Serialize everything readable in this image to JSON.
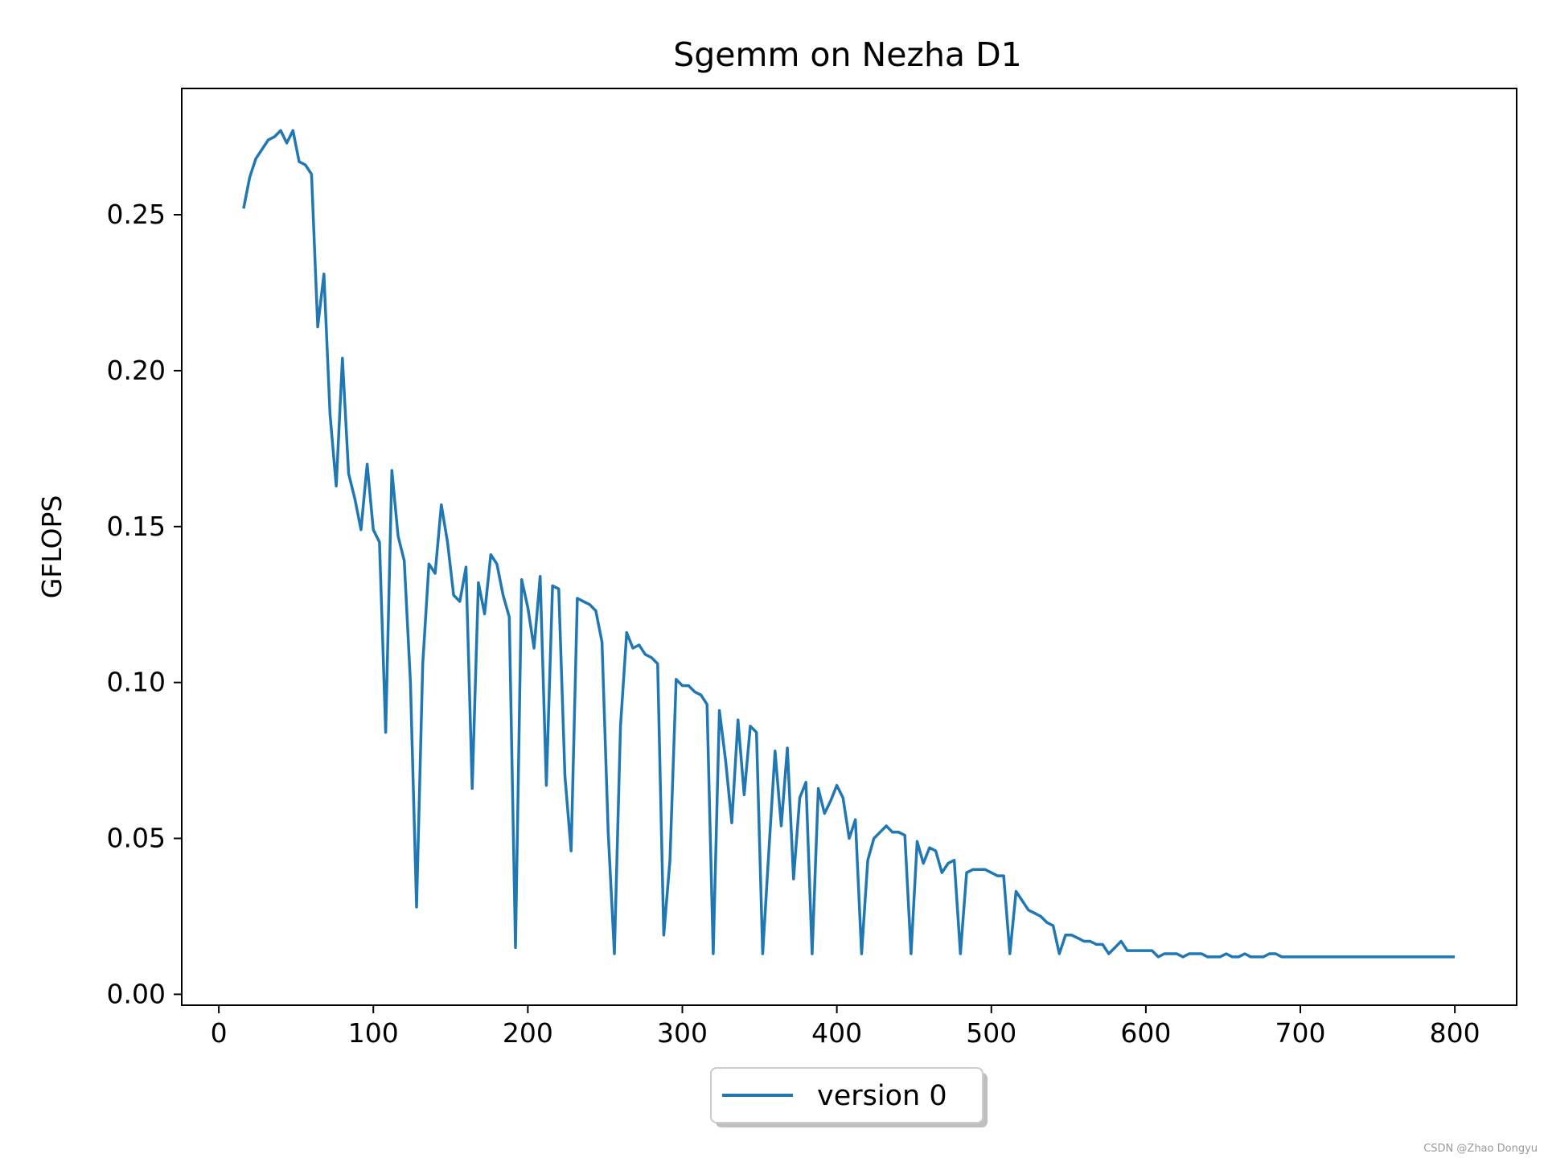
{
  "chart_data": {
    "type": "line",
    "title": "Sgemm on Nezha D1",
    "xlabel": "",
    "ylabel": "GFLOPS",
    "xlim": [
      -24,
      840
    ],
    "ylim": [
      -0.0035,
      0.2905
    ],
    "xticks": [
      0,
      100,
      200,
      300,
      400,
      500,
      600,
      700,
      800
    ],
    "yticks": [
      0.0,
      0.05,
      0.1,
      0.15,
      0.2,
      0.25
    ],
    "xtick_labels": [
      "0",
      "100",
      "200",
      "300",
      "400",
      "500",
      "600",
      "700",
      "800"
    ],
    "ytick_labels": [
      "0.00",
      "0.05",
      "0.10",
      "0.15",
      "0.20",
      "0.25"
    ],
    "legend": {
      "position": "below-center",
      "entries": [
        "version 0"
      ]
    },
    "series": [
      {
        "name": "version 0",
        "color": "#1f77b4",
        "points": [
          [
            16,
            0.252
          ],
          [
            20,
            0.262
          ],
          [
            24,
            0.268
          ],
          [
            28,
            0.271
          ],
          [
            32,
            0.274
          ],
          [
            36,
            0.275
          ],
          [
            40,
            0.277
          ],
          [
            44,
            0.273
          ],
          [
            48,
            0.277
          ],
          [
            52,
            0.267
          ],
          [
            56,
            0.266
          ],
          [
            60,
            0.263
          ],
          [
            64,
            0.214
          ],
          [
            68,
            0.231
          ],
          [
            72,
            0.186
          ],
          [
            76,
            0.163
          ],
          [
            80,
            0.204
          ],
          [
            84,
            0.167
          ],
          [
            88,
            0.159
          ],
          [
            92,
            0.149
          ],
          [
            96,
            0.17
          ],
          [
            100,
            0.149
          ],
          [
            104,
            0.145
          ],
          [
            108,
            0.084
          ],
          [
            112,
            0.168
          ],
          [
            116,
            0.147
          ],
          [
            120,
            0.139
          ],
          [
            124,
            0.1
          ],
          [
            128,
            0.028
          ],
          [
            132,
            0.106
          ],
          [
            136,
            0.138
          ],
          [
            140,
            0.135
          ],
          [
            144,
            0.157
          ],
          [
            148,
            0.145
          ],
          [
            152,
            0.128
          ],
          [
            156,
            0.126
          ],
          [
            160,
            0.137
          ],
          [
            164,
            0.066
          ],
          [
            168,
            0.132
          ],
          [
            172,
            0.122
          ],
          [
            176,
            0.141
          ],
          [
            180,
            0.138
          ],
          [
            184,
            0.128
          ],
          [
            188,
            0.121
          ],
          [
            192,
            0.015
          ],
          [
            196,
            0.133
          ],
          [
            200,
            0.124
          ],
          [
            204,
            0.111
          ],
          [
            208,
            0.134
          ],
          [
            212,
            0.067
          ],
          [
            216,
            0.131
          ],
          [
            220,
            0.13
          ],
          [
            224,
            0.07
          ],
          [
            228,
            0.046
          ],
          [
            232,
            0.127
          ],
          [
            236,
            0.126
          ],
          [
            240,
            0.125
          ],
          [
            244,
            0.123
          ],
          [
            248,
            0.113
          ],
          [
            252,
            0.052
          ],
          [
            256,
            0.013
          ],
          [
            260,
            0.086
          ],
          [
            264,
            0.116
          ],
          [
            268,
            0.111
          ],
          [
            272,
            0.112
          ],
          [
            276,
            0.109
          ],
          [
            280,
            0.108
          ],
          [
            284,
            0.106
          ],
          [
            288,
            0.019
          ],
          [
            292,
            0.043
          ],
          [
            296,
            0.101
          ],
          [
            300,
            0.099
          ],
          [
            304,
            0.099
          ],
          [
            308,
            0.097
          ],
          [
            312,
            0.096
          ],
          [
            316,
            0.093
          ],
          [
            320,
            0.013
          ],
          [
            324,
            0.091
          ],
          [
            328,
            0.075
          ],
          [
            332,
            0.055
          ],
          [
            336,
            0.088
          ],
          [
            340,
            0.064
          ],
          [
            344,
            0.086
          ],
          [
            348,
            0.084
          ],
          [
            352,
            0.013
          ],
          [
            356,
            0.046
          ],
          [
            360,
            0.078
          ],
          [
            364,
            0.054
          ],
          [
            368,
            0.079
          ],
          [
            372,
            0.037
          ],
          [
            376,
            0.063
          ],
          [
            380,
            0.068
          ],
          [
            384,
            0.013
          ],
          [
            388,
            0.066
          ],
          [
            392,
            0.058
          ],
          [
            396,
            0.062
          ],
          [
            400,
            0.067
          ],
          [
            404,
            0.063
          ],
          [
            408,
            0.05
          ],
          [
            412,
            0.056
          ],
          [
            416,
            0.013
          ],
          [
            420,
            0.043
          ],
          [
            424,
            0.05
          ],
          [
            428,
            0.052
          ],
          [
            432,
            0.054
          ],
          [
            436,
            0.052
          ],
          [
            440,
            0.052
          ],
          [
            444,
            0.051
          ],
          [
            448,
            0.013
          ],
          [
            452,
            0.049
          ],
          [
            456,
            0.042
          ],
          [
            460,
            0.047
          ],
          [
            464,
            0.046
          ],
          [
            468,
            0.039
          ],
          [
            472,
            0.042
          ],
          [
            476,
            0.043
          ],
          [
            480,
            0.013
          ],
          [
            484,
            0.039
          ],
          [
            488,
            0.04
          ],
          [
            492,
            0.04
          ],
          [
            496,
            0.04
          ],
          [
            500,
            0.039
          ],
          [
            504,
            0.038
          ],
          [
            508,
            0.038
          ],
          [
            512,
            0.013
          ],
          [
            516,
            0.033
          ],
          [
            520,
            0.03
          ],
          [
            524,
            0.027
          ],
          [
            528,
            0.026
          ],
          [
            532,
            0.025
          ],
          [
            536,
            0.023
          ],
          [
            540,
            0.022
          ],
          [
            544,
            0.013
          ],
          [
            548,
            0.019
          ],
          [
            552,
            0.019
          ],
          [
            556,
            0.018
          ],
          [
            560,
            0.017
          ],
          [
            564,
            0.017
          ],
          [
            568,
            0.016
          ],
          [
            572,
            0.016
          ],
          [
            576,
            0.013
          ],
          [
            580,
            0.015
          ],
          [
            584,
            0.017
          ],
          [
            588,
            0.014
          ],
          [
            592,
            0.014
          ],
          [
            596,
            0.014
          ],
          [
            600,
            0.014
          ],
          [
            604,
            0.014
          ],
          [
            608,
            0.012
          ],
          [
            612,
            0.013
          ],
          [
            616,
            0.013
          ],
          [
            620,
            0.013
          ],
          [
            624,
            0.012
          ],
          [
            628,
            0.013
          ],
          [
            632,
            0.013
          ],
          [
            636,
            0.013
          ],
          [
            640,
            0.012
          ],
          [
            644,
            0.012
          ],
          [
            648,
            0.012
          ],
          [
            652,
            0.013
          ],
          [
            656,
            0.012
          ],
          [
            660,
            0.012
          ],
          [
            664,
            0.013
          ],
          [
            668,
            0.012
          ],
          [
            672,
            0.012
          ],
          [
            676,
            0.012
          ],
          [
            680,
            0.013
          ],
          [
            684,
            0.013
          ],
          [
            688,
            0.012
          ],
          [
            700,
            0.012
          ],
          [
            720,
            0.012
          ],
          [
            740,
            0.012
          ],
          [
            760,
            0.012
          ],
          [
            780,
            0.012
          ],
          [
            800,
            0.012
          ]
        ]
      }
    ]
  },
  "watermark": "CSDN @Zhao Dongyu"
}
